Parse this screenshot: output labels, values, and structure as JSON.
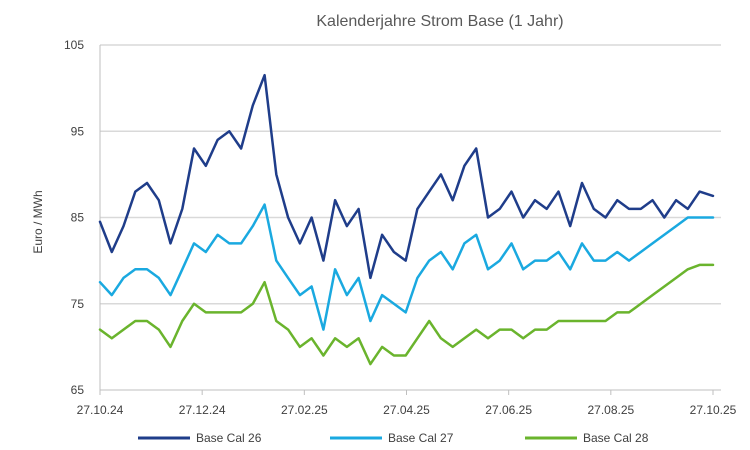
{
  "chart_data": {
    "type": "line",
    "title": "Kalenderjahre Strom Base (1 Jahr)",
    "xlabel": "",
    "ylabel": "Euro / MWh",
    "ylim": [
      65,
      105
    ],
    "yticks": [
      65,
      75,
      85,
      95,
      105
    ],
    "xlim": [
      "2024-10-27",
      "2025-10-27"
    ],
    "xticks": [
      "27.10.24",
      "27.12.24",
      "27.02.25",
      "27.04.25",
      "27.06.25",
      "27.08.25",
      "27.10.25"
    ],
    "grid": true,
    "legend": "bottom",
    "series": [
      {
        "name": "Base Cal 26",
        "color": "#1f3d8a",
        "x": [
          "2024-10-27",
          "2024-11-03",
          "2024-11-10",
          "2024-11-17",
          "2024-11-24",
          "2024-12-01",
          "2024-12-08",
          "2024-12-15",
          "2024-12-22",
          "2024-12-29",
          "2025-01-05",
          "2025-01-12",
          "2025-01-19",
          "2025-01-26",
          "2025-02-02",
          "2025-02-09",
          "2025-02-16",
          "2025-02-23",
          "2025-03-02",
          "2025-03-09",
          "2025-03-16",
          "2025-03-23",
          "2025-03-30",
          "2025-04-06",
          "2025-04-13",
          "2025-04-20",
          "2025-04-27",
          "2025-05-04",
          "2025-05-11",
          "2025-05-18",
          "2025-05-25",
          "2025-06-01",
          "2025-06-08",
          "2025-06-15",
          "2025-06-22",
          "2025-06-29",
          "2025-07-06",
          "2025-07-13",
          "2025-07-20",
          "2025-07-27",
          "2025-08-03",
          "2025-08-10",
          "2025-08-17",
          "2025-08-24",
          "2025-08-31",
          "2025-09-07",
          "2025-09-14",
          "2025-09-21",
          "2025-09-28",
          "2025-10-05",
          "2025-10-12",
          "2025-10-19",
          "2025-10-27"
        ],
        "values": [
          84.5,
          81,
          84,
          88,
          89,
          87,
          82,
          86,
          93,
          91,
          94,
          95,
          93,
          98,
          101.5,
          90,
          85,
          82,
          85,
          80,
          87,
          84,
          86,
          78,
          83,
          81,
          80,
          86,
          88,
          90,
          87,
          91,
          93,
          85,
          86,
          88,
          85,
          87,
          86,
          88,
          84,
          89,
          86,
          85,
          87,
          86,
          86,
          87,
          85,
          87,
          86,
          88,
          87.5
        ]
      },
      {
        "name": "Base Cal 27",
        "color": "#1aa9e0",
        "x": [
          "2024-10-27",
          "2024-11-03",
          "2024-11-10",
          "2024-11-17",
          "2024-11-24",
          "2024-12-01",
          "2024-12-08",
          "2024-12-15",
          "2024-12-22",
          "2024-12-29",
          "2025-01-05",
          "2025-01-12",
          "2025-01-19",
          "2025-01-26",
          "2025-02-02",
          "2025-02-09",
          "2025-02-16",
          "2025-02-23",
          "2025-03-02",
          "2025-03-09",
          "2025-03-16",
          "2025-03-23",
          "2025-03-30",
          "2025-04-06",
          "2025-04-13",
          "2025-04-20",
          "2025-04-27",
          "2025-05-04",
          "2025-05-11",
          "2025-05-18",
          "2025-05-25",
          "2025-06-01",
          "2025-06-08",
          "2025-06-15",
          "2025-06-22",
          "2025-06-29",
          "2025-07-06",
          "2025-07-13",
          "2025-07-20",
          "2025-07-27",
          "2025-08-03",
          "2025-08-10",
          "2025-08-17",
          "2025-08-24",
          "2025-08-31",
          "2025-09-07",
          "2025-09-14",
          "2025-09-21",
          "2025-09-28",
          "2025-10-05",
          "2025-10-12",
          "2025-10-19",
          "2025-10-27"
        ],
        "values": [
          77.5,
          76,
          78,
          79,
          79,
          78,
          76,
          79,
          82,
          81,
          83,
          82,
          82,
          84,
          86.5,
          80,
          78,
          76,
          77,
          72,
          79,
          76,
          78,
          73,
          76,
          75,
          74,
          78,
          80,
          81,
          79,
          82,
          83,
          79,
          80,
          82,
          79,
          80,
          80,
          81,
          79,
          82,
          80,
          80,
          81,
          80,
          81,
          82,
          83,
          84,
          85,
          85,
          85
        ]
      },
      {
        "name": "Base Cal 28",
        "color": "#6ab42d",
        "x": [
          "2024-10-27",
          "2024-11-03",
          "2024-11-10",
          "2024-11-17",
          "2024-11-24",
          "2024-12-01",
          "2024-12-08",
          "2024-12-15",
          "2024-12-22",
          "2024-12-29",
          "2025-01-05",
          "2025-01-12",
          "2025-01-19",
          "2025-01-26",
          "2025-02-02",
          "2025-02-09",
          "2025-02-16",
          "2025-02-23",
          "2025-03-02",
          "2025-03-09",
          "2025-03-16",
          "2025-03-23",
          "2025-03-30",
          "2025-04-06",
          "2025-04-13",
          "2025-04-20",
          "2025-04-27",
          "2025-05-04",
          "2025-05-11",
          "2025-05-18",
          "2025-05-25",
          "2025-06-01",
          "2025-06-08",
          "2025-06-15",
          "2025-06-22",
          "2025-06-29",
          "2025-07-06",
          "2025-07-13",
          "2025-07-20",
          "2025-07-27",
          "2025-08-03",
          "2025-08-10",
          "2025-08-17",
          "2025-08-24",
          "2025-08-31",
          "2025-09-07",
          "2025-09-14",
          "2025-09-21",
          "2025-09-28",
          "2025-10-05",
          "2025-10-12",
          "2025-10-19",
          "2025-10-27"
        ],
        "values": [
          72,
          71,
          72,
          73,
          73,
          72,
          70,
          73,
          75,
          74,
          74,
          74,
          74,
          75,
          77.5,
          73,
          72,
          70,
          71,
          69,
          71,
          70,
          71,
          68,
          70,
          69,
          69,
          71,
          73,
          71,
          70,
          71,
          72,
          71,
          72,
          72,
          71,
          72,
          72,
          73,
          73,
          73,
          73,
          73,
          74,
          74,
          75,
          76,
          77,
          78,
          79,
          79.5,
          79.5
        ]
      }
    ]
  }
}
